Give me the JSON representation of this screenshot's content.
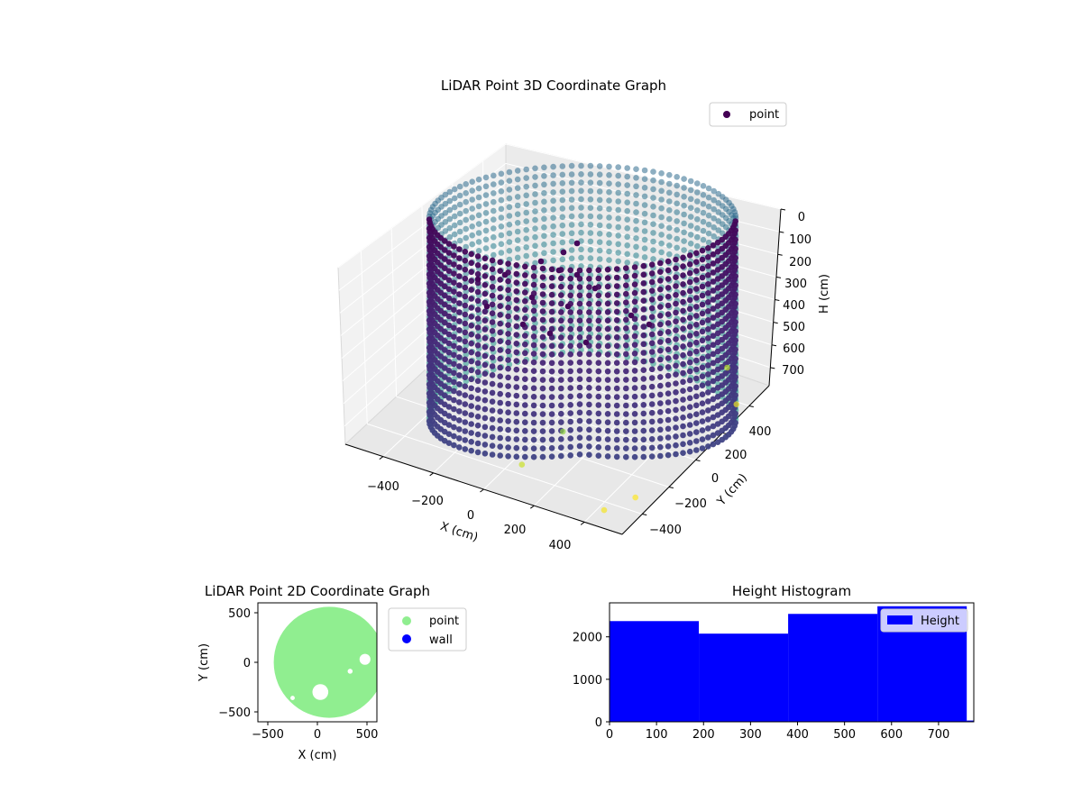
{
  "chart_data": [
    {
      "type": "scatter",
      "projection": "3d",
      "title": "LiDAR Point 3D Coordinate Graph",
      "xlabel": "X (cm)",
      "ylabel": "Y (cm)",
      "zlabel": "H (cm)",
      "xlim": [
        -550,
        550
      ],
      "ylim": [
        -550,
        550
      ],
      "zlim": [
        780,
        0
      ],
      "x_ticks": [
        -400,
        -200,
        0,
        200,
        400
      ],
      "y_ticks": [
        -400,
        -200,
        0,
        200,
        400
      ],
      "z_ticks": [
        0,
        100,
        200,
        300,
        400,
        500,
        600,
        700
      ],
      "x_tick_labels": [
        "−400",
        "−200",
        "0",
        "200",
        "400"
      ],
      "y_tick_labels": [
        "−400",
        "−200",
        "0",
        "200",
        "400"
      ],
      "z_tick_labels": [
        "0",
        "100",
        "200",
        "300",
        "400",
        "500",
        "600",
        "700"
      ],
      "colormap": "viridis",
      "legend": {
        "label": "point",
        "color": "#440154",
        "placement": "upper-right"
      },
      "series": [
        {
          "name": "point",
          "kind": "cylindrical-wall",
          "radius": 470,
          "h_range": [
            0,
            780
          ],
          "gap_deg": [
            [
              20,
              40
            ]
          ]
        },
        {
          "name": "point",
          "kind": "floor-fragments",
          "points": [
            {
              "x": -300,
              "y": 200,
              "h": 400
            },
            {
              "x": -150,
              "y": 280,
              "h": 350
            },
            {
              "x": 0,
              "y": 300,
              "h": 300
            },
            {
              "x": 120,
              "y": 220,
              "h": 250
            },
            {
              "x": 50,
              "y": 350,
              "h": 150
            },
            {
              "x": -250,
              "y": -50,
              "h": 450
            },
            {
              "x": 200,
              "y": 100,
              "h": 320
            }
          ]
        },
        {
          "name": "point",
          "kind": "outliers",
          "points": [
            {
              "x": 150,
              "y": -250,
              "h": 650
            },
            {
              "x": 80,
              "y": -420,
              "h": 720
            },
            {
              "x": 420,
              "y": 470,
              "h": 700
            },
            {
              "x": 520,
              "y": 360,
              "h": 760
            },
            {
              "x": 480,
              "y": -320,
              "h": 780
            },
            {
              "x": 430,
              "y": -460,
              "h": 770
            }
          ]
        }
      ]
    },
    {
      "type": "scatter",
      "title": "LiDAR Point 2D Coordinate Graph",
      "xlabel": "X (cm)",
      "ylabel": "Y (cm)",
      "xlim": [
        -600,
        600
      ],
      "ylim": [
        -600,
        600
      ],
      "x_ticks": [
        -500,
        0,
        500
      ],
      "y_ticks": [
        -500,
        0,
        500
      ],
      "x_tick_labels": [
        "−500",
        "0",
        "500"
      ],
      "y_tick_labels": [
        "−500",
        "0",
        "500"
      ],
      "legend_placement": "outside-right",
      "series": [
        {
          "name": "point",
          "color": "#90ee90",
          "shape": "disk",
          "center": [
            120,
            0
          ],
          "radius": 560
        },
        {
          "name": "wall",
          "color": "#0000ff"
        }
      ],
      "holes": [
        {
          "x": 30,
          "y": -300,
          "r": 80
        },
        {
          "x": 480,
          "y": 30,
          "r": 55
        },
        {
          "x": 330,
          "y": -90,
          "r": 25
        },
        {
          "x": -250,
          "y": -360,
          "r": 22
        }
      ]
    },
    {
      "type": "bar",
      "subtype": "histogram",
      "title": "Height Histogram",
      "xlabel": "",
      "ylabel": "",
      "xlim": [
        0,
        775
      ],
      "ylim": [
        0,
        2800
      ],
      "x_ticks": [
        0,
        100,
        200,
        300,
        400,
        500,
        600,
        700
      ],
      "y_ticks": [
        0,
        1000,
        2000
      ],
      "x_tick_labels": [
        "0",
        "100",
        "200",
        "300",
        "400",
        "500",
        "600",
        "700"
      ],
      "y_tick_labels": [
        "0",
        "1000",
        "2000"
      ],
      "legend": {
        "label": "Height",
        "color": "#0000ff",
        "placement": "upper-right"
      },
      "bins": [
        {
          "x0": 0,
          "x1": 190,
          "count": 2370
        },
        {
          "x0": 190,
          "x1": 380,
          "count": 2075
        },
        {
          "x0": 380,
          "x1": 570,
          "count": 2540
        },
        {
          "x0": 570,
          "x1": 760,
          "count": 2720
        },
        {
          "x0": 760,
          "x1": 775,
          "count": 30
        }
      ]
    }
  ]
}
